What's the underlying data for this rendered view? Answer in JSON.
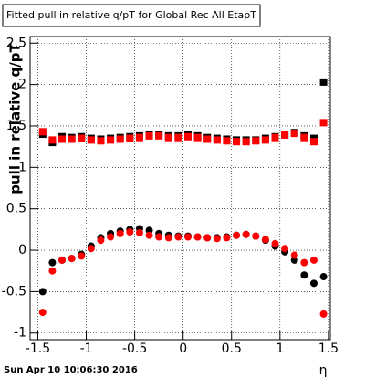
{
  "chart_data": {
    "type": "scatter",
    "title": "Fitted pull in relative q/pT  for Global Rec All EtapT",
    "y_label": "pull in relative q/pT",
    "x_label": "η",
    "footer": "Sun Apr 10 10:06:30 2016",
    "x": [
      -1.45,
      -1.35,
      -1.25,
      -1.15,
      -1.05,
      -0.95,
      -0.85,
      -0.75,
      -0.65,
      -0.55,
      -0.45,
      -0.35,
      -0.25,
      -0.15,
      -0.05,
      0.05,
      0.15,
      0.25,
      0.35,
      0.45,
      0.55,
      0.65,
      0.75,
      0.85,
      0.95,
      1.05,
      1.15,
      1.25,
      1.35,
      1.45
    ],
    "series": [
      {
        "color": "#000000",
        "marker": "square",
        "values": [
          1.4,
          1.3,
          1.37,
          1.36,
          1.37,
          1.35,
          1.34,
          1.35,
          1.36,
          1.37,
          1.38,
          1.4,
          1.4,
          1.38,
          1.38,
          1.4,
          1.38,
          1.36,
          1.35,
          1.34,
          1.33,
          1.33,
          1.33,
          1.35,
          1.37,
          1.4,
          1.42,
          1.38,
          1.35,
          2.03
        ]
      },
      {
        "color": "#ff0000",
        "marker": "square",
        "values": [
          1.43,
          1.33,
          1.34,
          1.34,
          1.35,
          1.33,
          1.32,
          1.33,
          1.34,
          1.35,
          1.36,
          1.38,
          1.38,
          1.36,
          1.36,
          1.37,
          1.36,
          1.34,
          1.33,
          1.32,
          1.31,
          1.31,
          1.32,
          1.33,
          1.36,
          1.39,
          1.41,
          1.36,
          1.31,
          1.54
        ]
      },
      {
        "color": "#000000",
        "marker": "circle",
        "values": [
          -0.5,
          -0.15,
          -0.12,
          -0.1,
          -0.05,
          0.05,
          0.15,
          0.2,
          0.23,
          0.25,
          0.26,
          0.24,
          0.2,
          0.18,
          0.17,
          0.17,
          0.16,
          0.15,
          0.15,
          0.16,
          0.18,
          0.19,
          0.17,
          0.12,
          0.05,
          -0.02,
          -0.12,
          -0.3,
          -0.4,
          -0.32
        ]
      },
      {
        "color": "#ff0000",
        "marker": "circle",
        "values": [
          -0.75,
          -0.25,
          -0.12,
          -0.1,
          -0.07,
          0.02,
          0.12,
          0.16,
          0.2,
          0.22,
          0.21,
          0.18,
          0.16,
          0.15,
          0.16,
          0.16,
          0.16,
          0.15,
          0.14,
          0.15,
          0.18,
          0.19,
          0.17,
          0.13,
          0.08,
          0.02,
          -0.06,
          -0.15,
          -0.12,
          -0.77
        ]
      }
    ],
    "xlim": [
      -1.58,
      1.52
    ],
    "xticks": [
      -1.5,
      -1,
      -0.5,
      0,
      0.5,
      1,
      1.5
    ],
    "ylim": [
      -1.08,
      2.58
    ],
    "yticks": [
      2.5,
      2,
      1.5,
      1,
      0.5,
      0,
      -0.5,
      -1
    ],
    "grid": true
  }
}
